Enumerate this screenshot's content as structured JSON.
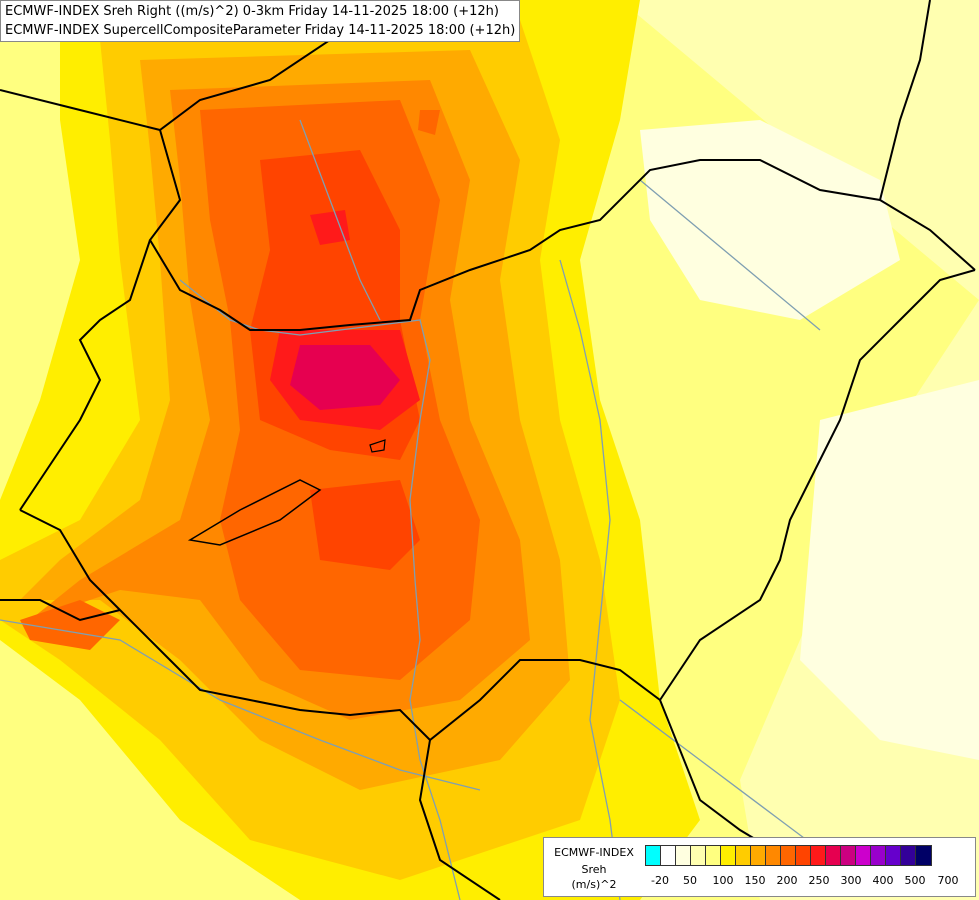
{
  "header": {
    "line1": "ECMWF-INDEX Sreh Right ((m/s)^2) 0-3km Friday 14-11-2025 18:00 (+12h)",
    "line2": "ECMWF-INDEX SupercellCompositeParameter Friday 14-11-2025 18:00 (+12h)"
  },
  "legend": {
    "line1": "ECMWF-INDEX",
    "line2": "Sreh",
    "line3": "(m/s)^2",
    "ticks": [
      "-20",
      "50",
      "100",
      "150",
      "200",
      "250",
      "300",
      "400",
      "500",
      "700"
    ],
    "colors": [
      "#00ffff",
      "#ffffff",
      "#ffffe0",
      "#ffffb0",
      "#ffff80",
      "#ffee00",
      "#ffcc00",
      "#ffaa00",
      "#ff8800",
      "#ff6600",
      "#ff4400",
      "#ff1a1a",
      "#e60050",
      "#cc0080",
      "#cc00cc",
      "#9900cc",
      "#6600cc",
      "#330099",
      "#000066"
    ]
  },
  "colors": {
    "border": "#000000",
    "river": "#7f9fb2"
  }
}
